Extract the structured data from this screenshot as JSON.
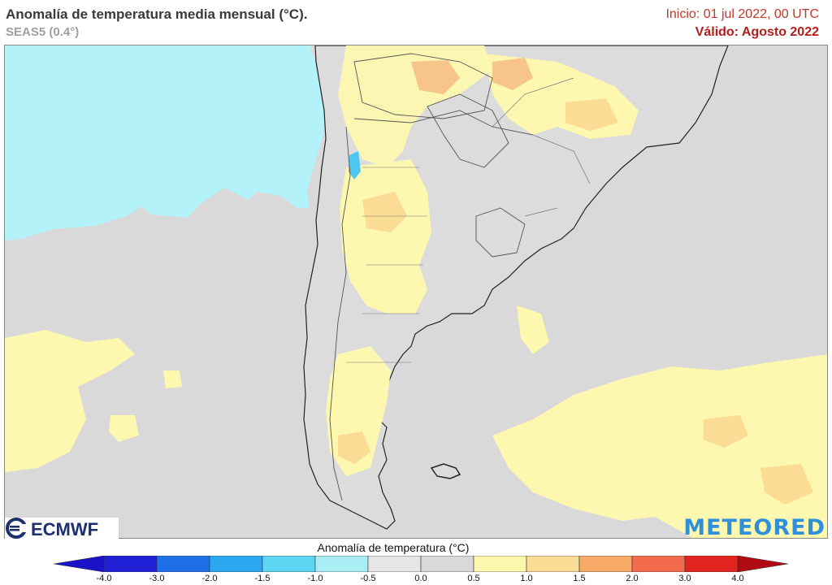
{
  "header": {
    "title": "Anomalía de temperatura media mensual (°C).",
    "subtitle": "SEAS5 (0.4°)",
    "init": "Inicio: 01 jul 2022, 00 UTC",
    "valid": "Válido: Agosto 2022"
  },
  "logos": {
    "ecmwf": "ECMWF",
    "meteored": "METEORED"
  },
  "colorbar": {
    "title": "Anomalía de temperatura (°C)",
    "ticks": [
      "-4.0",
      "-3.0",
      "-2.0",
      "-1.5",
      "-1.0",
      "-0.5",
      "0.0",
      "0.5",
      "1.0",
      "1.5",
      "2.0",
      "3.0",
      "4.0"
    ],
    "colors": [
      "#1f1fd6",
      "#1f6fe8",
      "#2aa8f0",
      "#5cd6f2",
      "#a9eef5",
      "#e6e6e6",
      "#d9d9d9",
      "#fdf7b0",
      "#fbdc95",
      "#f7a968",
      "#f26b4d",
      "#e02520"
    ],
    "under_color": "#1a12c8",
    "over_color": "#b00b14"
  },
  "map": {
    "ocean_neutral": "#d9d9d9",
    "land_color": "#dcdcdc",
    "pacific_cold": "#b3f2f8",
    "warm_light": "#fdf7b0",
    "warm_medium": "#fbdc95",
    "warm_strong": "#f7c58a",
    "cold_spot": "#4cc7ee",
    "border_color": "#555555",
    "coast_color": "#222222"
  }
}
